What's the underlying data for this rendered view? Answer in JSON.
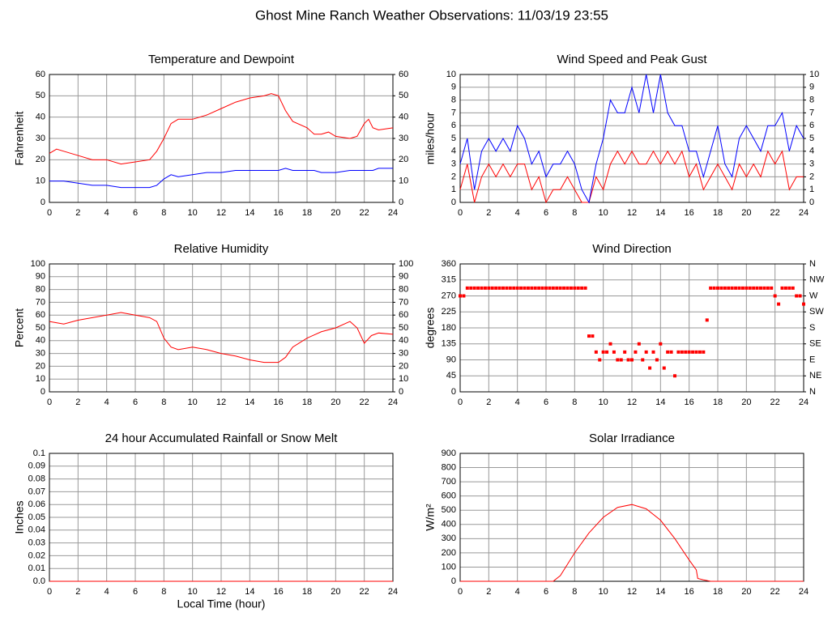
{
  "title": "Ghost Mine Ranch Weather Observations: 11/03/19 23:55",
  "chart_data": [
    {
      "type": "line",
      "title": "Temperature and Dewpoint",
      "ylabel": "Fahrenheit",
      "x": [
        0,
        0.5,
        1,
        2,
        3,
        4,
        5,
        6,
        7,
        7.5,
        8,
        8.5,
        9,
        10,
        11,
        12,
        13,
        14,
        15,
        15.5,
        16,
        16.5,
        17,
        18,
        18.5,
        19,
        19.5,
        20,
        21,
        21.5,
        22,
        22.3,
        22.6,
        23,
        24
      ],
      "series": [
        {
          "color": "#ff0000",
          "values": [
            23,
            25,
            24,
            22,
            20,
            20,
            18,
            19,
            20,
            24,
            30,
            37,
            39,
            39,
            41,
            44,
            47,
            49,
            50,
            51,
            50,
            43,
            38,
            35,
            32,
            32,
            33,
            31,
            30,
            31,
            37,
            39,
            35,
            34,
            35
          ]
        },
        {
          "color": "#0000ff",
          "values": [
            10,
            10,
            10,
            9,
            8,
            8,
            7,
            7,
            7,
            8,
            11,
            13,
            12,
            13,
            14,
            14,
            15,
            15,
            15,
            15,
            15,
            16,
            15,
            15,
            15,
            14,
            14,
            14,
            15,
            15,
            15,
            15,
            15,
            16,
            16
          ]
        }
      ],
      "xlim": [
        0,
        24
      ],
      "xticks": [
        0,
        2,
        4,
        6,
        8,
        10,
        12,
        14,
        16,
        18,
        20,
        22,
        24
      ],
      "ylim": [
        0,
        60
      ],
      "yticks": [
        0,
        10,
        20,
        30,
        40,
        50,
        60
      ],
      "y2lim": [
        0,
        60
      ],
      "y2ticks": [
        0,
        10,
        20,
        30,
        40,
        50,
        60
      ],
      "grid": true
    },
    {
      "type": "line",
      "title": "Wind Speed and Peak Gust",
      "ylabel": "miles/hour",
      "x": [
        0,
        0.5,
        1,
        1.5,
        2,
        2.5,
        3,
        3.5,
        4,
        4.5,
        5,
        5.5,
        6,
        6.5,
        7,
        7.5,
        8,
        8.5,
        9,
        9.5,
        10,
        10.5,
        11,
        11.5,
        12,
        12.5,
        13,
        13.5,
        14,
        14.5,
        15,
        15.5,
        16,
        16.5,
        17,
        17.5,
        18,
        18.5,
        19,
        19.5,
        20,
        20.5,
        21,
        21.5,
        22,
        22.5,
        23,
        23.5,
        24
      ],
      "series": [
        {
          "color": "#ff0000",
          "values": [
            1,
            3,
            0,
            2,
            3,
            2,
            3,
            2,
            3,
            3,
            1,
            2,
            0,
            1,
            1,
            2,
            1,
            0,
            0,
            2,
            1,
            3,
            4,
            3,
            4,
            3,
            3,
            4,
            3,
            4,
            3,
            4,
            2,
            3,
            1,
            2,
            3,
            2,
            1,
            3,
            2,
            3,
            2,
            4,
            3,
            4,
            1,
            2,
            2
          ]
        },
        {
          "color": "#0000ff",
          "values": [
            3,
            5,
            1,
            4,
            5,
            4,
            5,
            4,
            6,
            5,
            3,
            4,
            2,
            3,
            3,
            4,
            3,
            1,
            0,
            3,
            5,
            8,
            7,
            7,
            9,
            7,
            10,
            7,
            10,
            7,
            6,
            6,
            4,
            4,
            2,
            4,
            6,
            3,
            2,
            5,
            6,
            5,
            4,
            6,
            6,
            7,
            4,
            6,
            5
          ]
        }
      ],
      "xlim": [
        0,
        24
      ],
      "xticks": [
        0,
        2,
        4,
        6,
        8,
        10,
        12,
        14,
        16,
        18,
        20,
        22,
        24
      ],
      "ylim": [
        0,
        10
      ],
      "yticks": [
        0,
        1,
        2,
        3,
        4,
        5,
        6,
        7,
        8,
        9,
        10
      ],
      "y2lim": [
        0,
        10
      ],
      "y2ticks": [
        0,
        1,
        2,
        3,
        4,
        5,
        6,
        7,
        8,
        9,
        10
      ],
      "grid": true
    },
    {
      "type": "line",
      "title": "Relative Humidity",
      "ylabel": "Percent",
      "x": [
        0,
        1,
        2,
        3,
        4,
        5,
        6,
        7,
        7.5,
        8,
        8.5,
        9,
        10,
        11,
        12,
        13,
        14,
        15,
        16,
        16.5,
        17,
        18,
        19,
        20,
        21,
        21.5,
        22,
        22.5,
        23,
        24
      ],
      "series": [
        {
          "color": "#ff0000",
          "values": [
            55,
            53,
            56,
            58,
            60,
            62,
            60,
            58,
            55,
            42,
            35,
            33,
            35,
            33,
            30,
            28,
            25,
            23,
            23,
            27,
            35,
            42,
            47,
            50,
            55,
            50,
            38,
            44,
            46,
            45
          ]
        }
      ],
      "xlim": [
        0,
        24
      ],
      "xticks": [
        0,
        2,
        4,
        6,
        8,
        10,
        12,
        14,
        16,
        18,
        20,
        22,
        24
      ],
      "ylim": [
        0,
        100
      ],
      "yticks": [
        0,
        10,
        20,
        30,
        40,
        50,
        60,
        70,
        80,
        90,
        100
      ],
      "y2lim": [
        0,
        100
      ],
      "y2ticks": [
        0,
        10,
        20,
        30,
        40,
        50,
        60,
        70,
        80,
        90,
        100
      ],
      "grid": true
    },
    {
      "type": "scatter",
      "title": "Wind Direction",
      "ylabel": "degrees",
      "x": [
        0,
        0.25,
        0.5,
        0.75,
        1,
        1.25,
        1.5,
        1.75,
        2,
        2.25,
        2.5,
        2.75,
        3,
        3.25,
        3.5,
        3.75,
        4,
        4.25,
        4.5,
        4.75,
        5,
        5.25,
        5.5,
        5.75,
        6,
        6.25,
        6.5,
        6.75,
        7,
        7.25,
        7.5,
        7.75,
        8,
        8.25,
        8.5,
        8.75,
        9,
        9.25,
        9.5,
        9.75,
        10,
        10.25,
        10.5,
        10.75,
        11,
        11.25,
        11.5,
        11.75,
        12,
        12.25,
        12.5,
        12.75,
        13,
        13.25,
        13.5,
        13.75,
        14,
        14.25,
        14.5,
        14.75,
        15,
        15.25,
        15.5,
        15.75,
        16,
        16.25,
        16.5,
        16.75,
        17,
        17.25,
        17.5,
        17.75,
        18,
        18.25,
        18.5,
        18.75,
        19,
        19.25,
        19.5,
        19.75,
        20,
        20.25,
        20.5,
        20.75,
        21,
        21.25,
        21.5,
        21.75,
        22,
        22.25,
        22.5,
        22.75,
        23,
        23.25,
        23.5,
        23.75,
        24
      ],
      "series": [
        {
          "color": "#ff0000",
          "values": [
            270,
            270,
            292,
            292,
            292,
            292,
            292,
            292,
            292,
            292,
            292,
            292,
            292,
            292,
            292,
            292,
            292,
            292,
            292,
            292,
            292,
            292,
            292,
            292,
            292,
            292,
            292,
            292,
            292,
            292,
            292,
            292,
            292,
            292,
            292,
            292,
            157,
            157,
            112,
            90,
            112,
            112,
            135,
            112,
            90,
            90,
            112,
            90,
            90,
            112,
            135,
            90,
            112,
            67,
            112,
            90,
            135,
            67,
            112,
            112,
            45,
            112,
            112,
            112,
            112,
            112,
            112,
            112,
            112,
            202,
            292,
            292,
            292,
            292,
            292,
            292,
            292,
            292,
            292,
            292,
            292,
            292,
            292,
            292,
            292,
            292,
            292,
            292,
            270,
            247,
            292,
            292,
            292,
            292,
            270,
            270,
            247
          ]
        }
      ],
      "xlim": [
        0,
        24
      ],
      "xticks": [
        0,
        2,
        4,
        6,
        8,
        10,
        12,
        14,
        16,
        18,
        20,
        22,
        24
      ],
      "ylim": [
        0,
        360
      ],
      "yticks": [
        0,
        45,
        90,
        135,
        180,
        225,
        270,
        315,
        360
      ],
      "y2lim": [
        0,
        360
      ],
      "y2ticks": [
        {
          "value": 0,
          "label": "N"
        },
        {
          "value": 45,
          "label": "NE"
        },
        {
          "value": 90,
          "label": "E"
        },
        {
          "value": 135,
          "label": "SE"
        },
        {
          "value": 180,
          "label": "S"
        },
        {
          "value": 225,
          "label": "SW"
        },
        {
          "value": 270,
          "label": "W"
        },
        {
          "value": 315,
          "label": "NW"
        },
        {
          "value": 360,
          "label": "N"
        }
      ],
      "grid": true
    },
    {
      "type": "line",
      "title": "24 hour Accumulated Rainfall or Snow Melt",
      "ylabel": "Inches",
      "xlabel": "Local Time (hour)",
      "x": [
        0,
        24
      ],
      "series": [
        {
          "color": "#ff0000",
          "values": [
            0,
            0
          ]
        }
      ],
      "xlim": [
        0,
        24
      ],
      "xticks": [
        0,
        2,
        4,
        6,
        8,
        10,
        12,
        14,
        16,
        18,
        20,
        22,
        24
      ],
      "ylim": [
        0,
        0.1
      ],
      "yticks": [
        {
          "value": 0,
          "label": "0.0"
        },
        0.01,
        0.02,
        0.03,
        0.04,
        0.05,
        0.06,
        0.07,
        0.08,
        0.09,
        0.1
      ],
      "grid": true
    },
    {
      "type": "line",
      "title": "Solar Irradiance",
      "ylabel": "W/m²",
      "x": [
        0,
        6.5,
        7,
        8,
        9,
        10,
        11,
        12,
        13,
        14,
        15,
        16,
        16.5,
        16.6,
        17,
        17.5,
        24
      ],
      "series": [
        {
          "color": "#ff0000",
          "values": [
            0,
            0,
            40,
            200,
            340,
            450,
            520,
            540,
            510,
            430,
            300,
            150,
            80,
            20,
            10,
            0,
            0
          ]
        }
      ],
      "xlim": [
        0,
        24
      ],
      "xticks": [
        0,
        2,
        4,
        6,
        8,
        10,
        12,
        14,
        16,
        18,
        20,
        22,
        24
      ],
      "ylim": [
        0,
        900
      ],
      "yticks": [
        0,
        100,
        200,
        300,
        400,
        500,
        600,
        700,
        800,
        900
      ],
      "grid": true
    }
  ]
}
